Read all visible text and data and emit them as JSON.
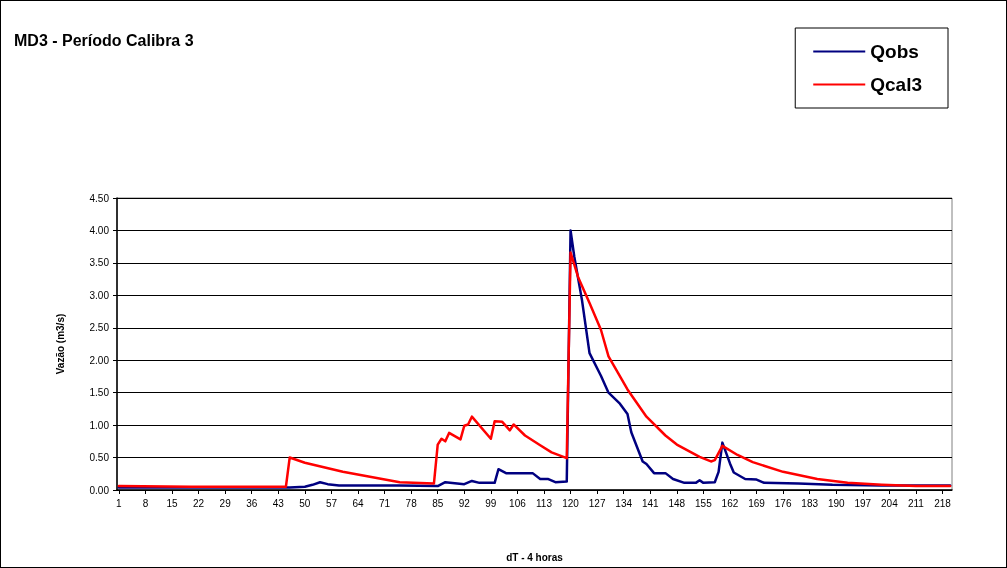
{
  "chart_data": {
    "type": "line",
    "title": "MD3 - Período Calibra 3",
    "xlabel": "dT - 4 horas",
    "ylabel": "Vazão (m3/s)",
    "xlim": [
      0.5,
      220.5
    ],
    "xticks": [
      1,
      8,
      15,
      22,
      29,
      36,
      43,
      50,
      57,
      64,
      71,
      78,
      85,
      92,
      99,
      106,
      113,
      120,
      127,
      134,
      141,
      148,
      155,
      162,
      169,
      176,
      183,
      190,
      197,
      204,
      211,
      218
    ],
    "ylim": [
      0,
      4.5
    ],
    "yticks": [
      {
        "value": 0,
        "label": "0.00"
      },
      {
        "value": 0.5,
        "label": "0.50"
      },
      {
        "value": 1,
        "label": "1.00"
      },
      {
        "value": 1.5,
        "label": "1.50"
      },
      {
        "value": 2,
        "label": "2.00"
      },
      {
        "value": 2.5,
        "label": "2.50"
      },
      {
        "value": 3,
        "label": "3.00"
      },
      {
        "value": 3.5,
        "label": "3.50"
      },
      {
        "value": 4,
        "label": "4.00"
      },
      {
        "value": 4.5,
        "label": "4.50"
      }
    ],
    "grid": "y",
    "legend": "top right",
    "marker": "none",
    "line_style": "solid",
    "series": [
      {
        "name": "Qobs",
        "color": "#000080",
        "x": [
          1,
          20,
          46,
          50,
          52,
          54,
          56,
          59,
          75,
          85,
          87,
          92,
          94,
          96,
          100,
          101,
          103,
          110,
          112,
          114,
          116,
          119,
          120,
          121,
          123,
          125,
          128,
          130,
          133,
          135,
          136,
          139,
          140,
          142,
          145,
          147,
          150,
          153,
          154,
          155,
          158,
          159,
          160,
          162,
          163,
          166,
          169,
          171,
          180,
          189,
          202,
          220
        ],
        "values": [
          0.04,
          0.04,
          0.04,
          0.05,
          0.08,
          0.12,
          0.09,
          0.07,
          0.07,
          0.06,
          0.12,
          0.09,
          0.14,
          0.11,
          0.11,
          0.32,
          0.26,
          0.26,
          0.17,
          0.17,
          0.12,
          0.13,
          4.0,
          3.59,
          2.93,
          2.11,
          1.76,
          1.5,
          1.33,
          1.17,
          0.89,
          0.44,
          0.4,
          0.26,
          0.26,
          0.17,
          0.11,
          0.11,
          0.15,
          0.11,
          0.12,
          0.28,
          0.73,
          0.41,
          0.27,
          0.17,
          0.16,
          0.11,
          0.1,
          0.08,
          0.07,
          0.07
        ]
      },
      {
        "name": "Qcal3",
        "color": "#ff0000",
        "x": [
          1,
          20,
          45,
          46,
          50,
          60,
          75,
          84,
          85,
          86,
          87,
          88,
          91,
          92,
          93,
          94,
          99,
          100,
          102,
          104,
          105,
          108,
          112,
          115,
          119,
          120,
          122,
          125,
          128,
          130,
          135,
          140,
          145,
          148,
          154,
          157,
          158,
          160,
          164,
          168,
          176,
          185,
          193,
          202,
          211,
          220
        ],
        "values": [
          0.06,
          0.05,
          0.05,
          0.5,
          0.42,
          0.28,
          0.12,
          0.1,
          0.7,
          0.79,
          0.75,
          0.88,
          0.78,
          0.99,
          1.01,
          1.13,
          0.79,
          1.06,
          1.05,
          0.92,
          1.01,
          0.84,
          0.69,
          0.58,
          0.49,
          3.66,
          3.28,
          2.88,
          2.47,
          2.06,
          1.55,
          1.13,
          0.84,
          0.7,
          0.51,
          0.44,
          0.46,
          0.68,
          0.54,
          0.43,
          0.28,
          0.17,
          0.11,
          0.08,
          0.06,
          0.06
        ]
      }
    ]
  }
}
